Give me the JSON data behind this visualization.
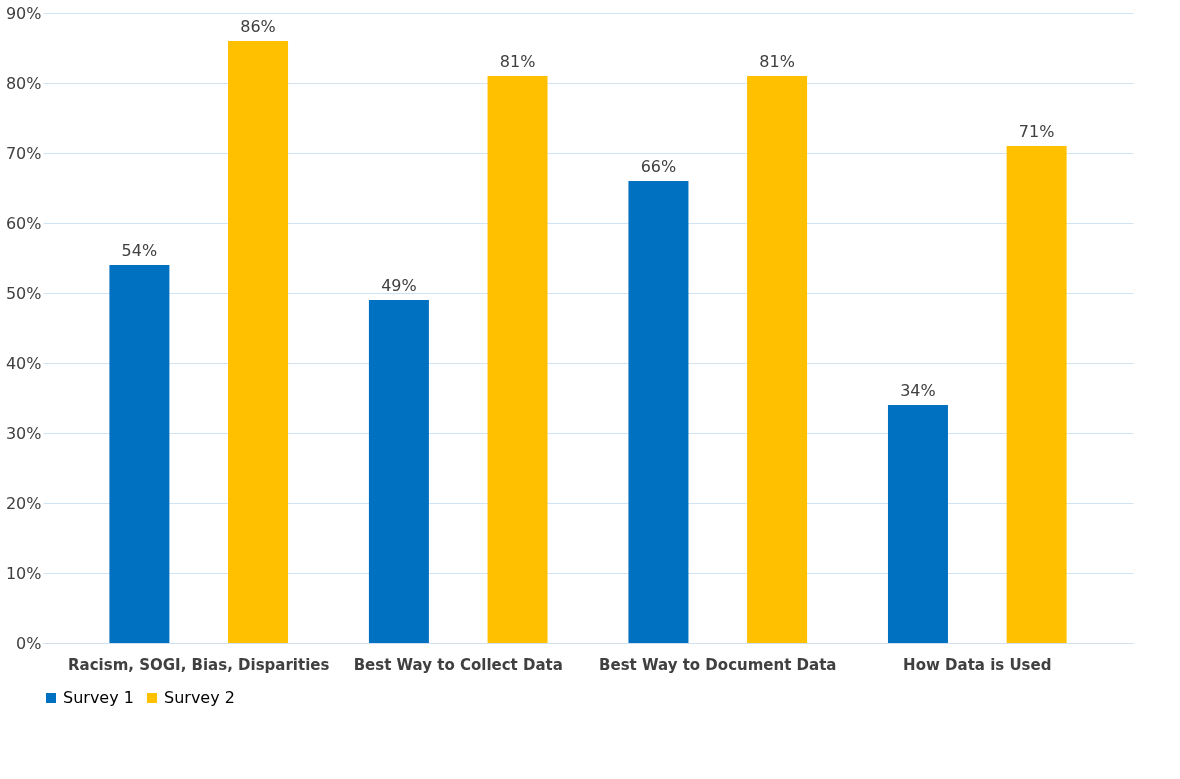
{
  "chart_data": {
    "type": "bar",
    "categories": [
      "Racism, SOGI, Bias, Disparities",
      "Best Way to Collect Data",
      "Best Way to Document Data",
      "How Data is Used"
    ],
    "series": [
      {
        "name": "Survey 1",
        "color": "#0070c0",
        "values": [
          54,
          49,
          66,
          34
        ],
        "value_labels": [
          "54%",
          "49%",
          "66%",
          "34%"
        ]
      },
      {
        "name": "Survey 2",
        "color": "#ffc000",
        "values": [
          86,
          81,
          81,
          71
        ],
        "value_labels": [
          "86%",
          "81%",
          "81%",
          "71%"
        ]
      }
    ],
    "ylim": [
      0,
      90
    ],
    "yticks": [
      {
        "value": 0,
        "label": "0%"
      },
      {
        "value": 10,
        "label": "10%"
      },
      {
        "value": 20,
        "label": "20%"
      },
      {
        "value": 30,
        "label": "30%"
      },
      {
        "value": 40,
        "label": "40%"
      },
      {
        "value": 50,
        "label": "50%"
      },
      {
        "value": 60,
        "label": "60%"
      },
      {
        "value": 70,
        "label": "70%"
      },
      {
        "value": 80,
        "label": "80%"
      },
      {
        "value": 90,
        "label": "90%"
      }
    ],
    "grid": "y",
    "legend": "bottom"
  }
}
